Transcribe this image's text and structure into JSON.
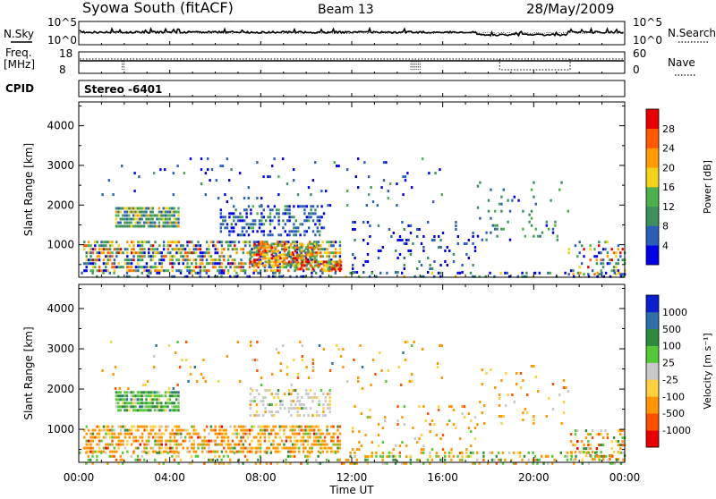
{
  "header": {
    "title": "Syowa South (fitACF)",
    "beam": "Beam 13",
    "date": "28/May/2009"
  },
  "noise_panel": {
    "left_label": "N.Sky",
    "left_ticks": [
      "10^5",
      "10^0"
    ],
    "right_label": "N.Search",
    "right_ticks": [
      "10^5",
      "10^0"
    ]
  },
  "freq_panel": {
    "left_label_line1": "Freq.",
    "left_label_line2": "[MHz]",
    "left_ticks": [
      "18",
      "8"
    ],
    "right_label": "Nave",
    "right_ticks": [
      "60",
      "0"
    ]
  },
  "cpid_panel": {
    "label": "CPID",
    "value": "Stereo  -6401"
  },
  "chart_data": [
    {
      "type": "heatmap",
      "quantity": "power",
      "ylabel": "Slant Range [km]",
      "xlabel": "",
      "x_ticks": [
        "00:00",
        "04:00",
        "08:00",
        "12:00",
        "16:00",
        "20:00",
        "00:00"
      ],
      "y_ticks": [
        1000,
        2000,
        3000,
        4000
      ],
      "ylim": [
        180,
        4600
      ],
      "xlim_hours": [
        0,
        24
      ],
      "colorbar": {
        "label": "Power [dB]",
        "ticks": [
          "28",
          "24",
          "20",
          "16",
          "12",
          "8",
          "4"
        ],
        "colors": [
          "#0000e6",
          "#2a5fb8",
          "#3e8f5e",
          "#4db04a",
          "#f2d21b",
          "#ff9b00",
          "#ff5a00",
          "#e60000"
        ]
      },
      "scatter_regions": [
        {
          "t0": 1.6,
          "t1": 4.4,
          "r0": 1450,
          "r1": 1950,
          "weights": [
            0,
            0.2,
            0.35,
            0.25,
            0.15,
            0.05,
            0,
            0
          ],
          "density": 0.85
        },
        {
          "t0": 0.2,
          "t1": 11.5,
          "r0": 350,
          "r1": 1100,
          "weights": [
            0.12,
            0.15,
            0.18,
            0.15,
            0.12,
            0.13,
            0.1,
            0.05
          ],
          "density": 0.6
        },
        {
          "t0": 6.2,
          "t1": 10.8,
          "r0": 1250,
          "r1": 2000,
          "weights": [
            0.35,
            0.45,
            0.15,
            0.05,
            0,
            0,
            0,
            0
          ],
          "density": 0.45
        },
        {
          "t0": 7.5,
          "t1": 10.5,
          "r0": 500,
          "r1": 1050,
          "weights": [
            0,
            0.05,
            0.1,
            0.15,
            0.2,
            0.25,
            0.15,
            0.1
          ],
          "density": 0.7
        },
        {
          "t0": 9.5,
          "t1": 11.5,
          "r0": 350,
          "r1": 600,
          "weights": [
            0,
            0,
            0.05,
            0.1,
            0.15,
            0.2,
            0.25,
            0.25
          ],
          "density": 0.7
        },
        {
          "t0": 1.0,
          "t1": 16.0,
          "r0": 2000,
          "r1": 3200,
          "weights": [
            0.4,
            0.4,
            0.1,
            0.1,
            0,
            0,
            0,
            0
          ],
          "density": 0.04
        },
        {
          "t0": 12.0,
          "t1": 17.5,
          "r0": 300,
          "r1": 1600,
          "weights": [
            0.5,
            0.4,
            0.1,
            0,
            0,
            0,
            0,
            0
          ],
          "density": 0.12
        },
        {
          "t0": 17.5,
          "t1": 21.5,
          "r0": 1100,
          "r1": 2600,
          "weights": [
            0.1,
            0.2,
            0.4,
            0.3,
            0,
            0,
            0,
            0
          ],
          "density": 0.08
        },
        {
          "t0": 21.5,
          "t1": 24.0,
          "r0": 250,
          "r1": 1100,
          "weights": [
            0.15,
            0.2,
            0.25,
            0.15,
            0.1,
            0.05,
            0.05,
            0.05
          ],
          "density": 0.35
        },
        {
          "t0": 0.0,
          "t1": 24.0,
          "r0": 180,
          "r1": 320,
          "weights": [
            0.3,
            0.3,
            0.2,
            0.1,
            0.05,
            0.05,
            0,
            0
          ],
          "density": 0.25
        }
      ]
    },
    {
      "type": "heatmap",
      "quantity": "velocity",
      "ylabel": "Slant Range [km]",
      "xlabel": "Time UT",
      "x_ticks": [
        "00:00",
        "04:00",
        "08:00",
        "12:00",
        "16:00",
        "20:00",
        "00:00"
      ],
      "y_ticks": [
        1000,
        2000,
        3000,
        4000
      ],
      "ylim": [
        180,
        4600
      ],
      "xlim_hours": [
        0,
        24
      ],
      "colorbar": {
        "label": "Velocity [m s⁻¹]",
        "ticks": [
          "1000",
          "500",
          "100",
          "25",
          "-25",
          "-100",
          "-500",
          "-1000"
        ],
        "colors": [
          "#e60000",
          "#ff5000",
          "#ff9500",
          "#ffd040",
          "#c8c8c8",
          "#55c83a",
          "#2e8a3c",
          "#2f6fa8",
          "#0a1fd0"
        ]
      },
      "scatter_regions": [
        {
          "t0": 1.6,
          "t1": 4.4,
          "r0": 1450,
          "r1": 1950,
          "weights": [
            0,
            0,
            0,
            0.05,
            0.1,
            0.45,
            0.35,
            0.05,
            0
          ],
          "density": 0.85
        },
        {
          "t0": 0.2,
          "t1": 11.5,
          "r0": 450,
          "r1": 1100,
          "weights": [
            0.02,
            0.1,
            0.55,
            0.15,
            0.05,
            0.08,
            0.05,
            0,
            0
          ],
          "density": 0.6
        },
        {
          "t0": 7.5,
          "t1": 11.0,
          "r0": 1350,
          "r1": 2000,
          "weights": [
            0,
            0,
            0.1,
            0.2,
            0.6,
            0.05,
            0.05,
            0,
            0
          ],
          "density": 0.4
        },
        {
          "t0": 12.0,
          "t1": 17.5,
          "r0": 300,
          "r1": 1600,
          "weights": [
            0,
            0.1,
            0.55,
            0.15,
            0.1,
            0.1,
            0,
            0,
            0
          ],
          "density": 0.1
        },
        {
          "t0": 1.0,
          "t1": 16.0,
          "r0": 2000,
          "r1": 3200,
          "weights": [
            0,
            0.1,
            0.5,
            0.2,
            0.1,
            0.05,
            0,
            0.05,
            0
          ],
          "density": 0.04
        },
        {
          "t0": 17.5,
          "t1": 21.5,
          "r0": 1100,
          "r1": 2600,
          "weights": [
            0,
            0.1,
            0.6,
            0.2,
            0.1,
            0,
            0,
            0,
            0
          ],
          "density": 0.07
        },
        {
          "t0": 21.5,
          "t1": 24.0,
          "r0": 250,
          "r1": 1000,
          "weights": [
            0.05,
            0.1,
            0.3,
            0.15,
            0.1,
            0.2,
            0.1,
            0,
            0
          ],
          "density": 0.35
        },
        {
          "t0": 0.0,
          "t1": 24.0,
          "r0": 180,
          "r1": 450,
          "weights": [
            0,
            0.05,
            0.3,
            0.1,
            0.1,
            0.3,
            0.15,
            0,
            0
          ],
          "density": 0.25
        }
      ]
    }
  ]
}
